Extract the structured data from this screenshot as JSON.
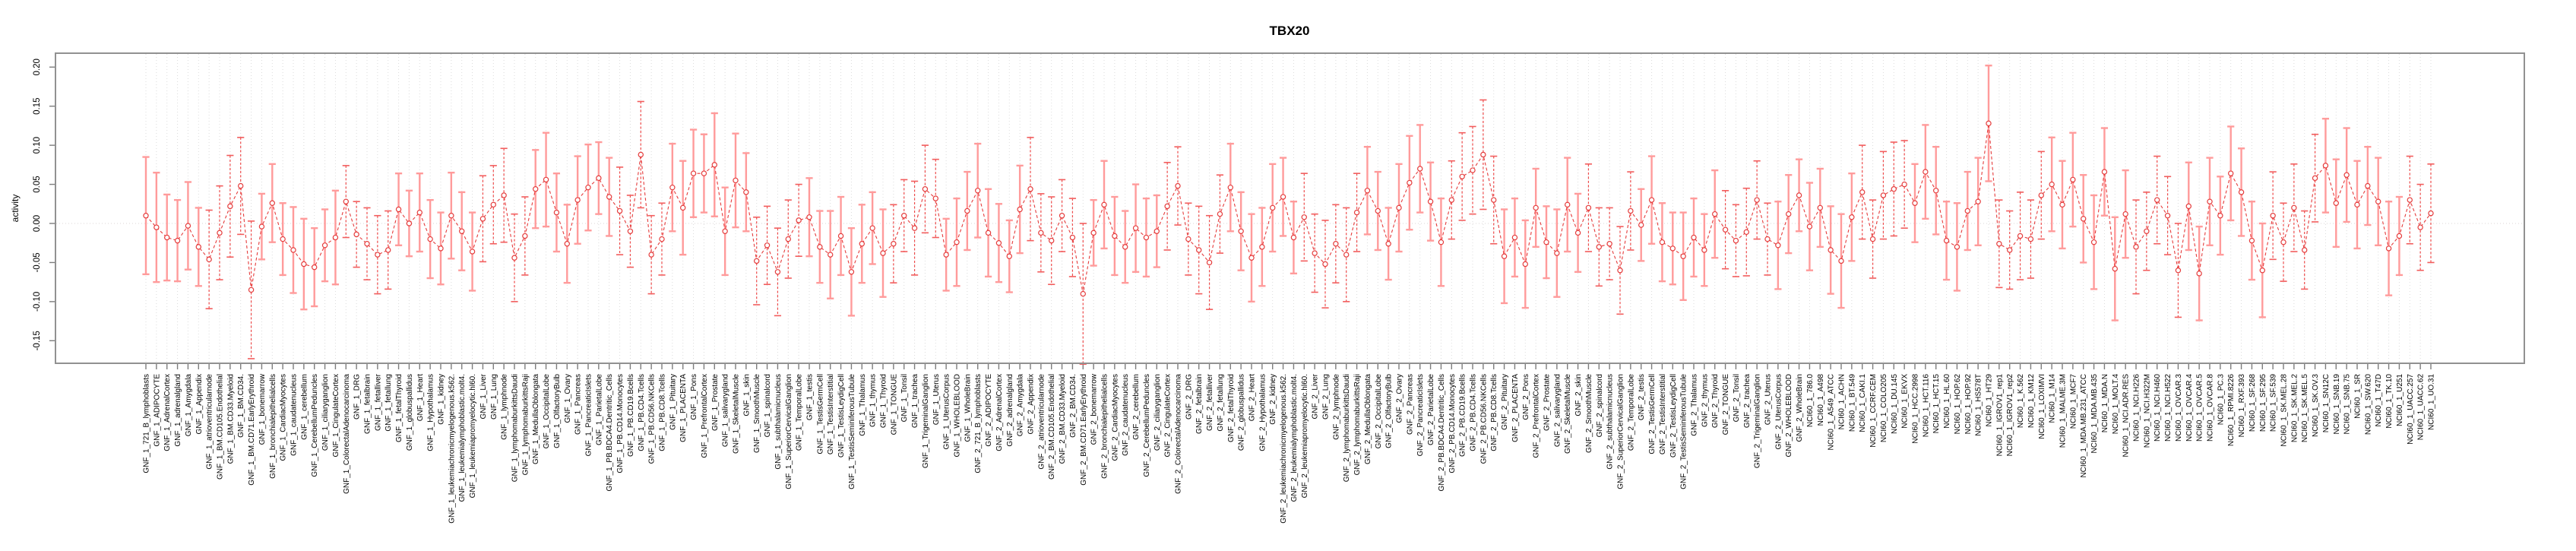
{
  "chart_data": {
    "type": "line",
    "title": "TBX20",
    "xlabel": "",
    "ylabel": "activity",
    "ylim": [
      -0.165,
      0.215
    ],
    "yticks": [
      0.2,
      0.15,
      0.1,
      0.05,
      0.0,
      -0.05,
      -0.1,
      -0.15
    ],
    "grid": "vertical-dotted-per-category",
    "zero_line": true,
    "legend": "none",
    "marker": "open-circle",
    "line_style": "dashed",
    "error_bars": "vertical-with-caps",
    "colors": {
      "series": "#e53c3c",
      "error_bar_solid": "#ff9b9b",
      "error_bar_dashed": "#ee4b4b",
      "gridline": "#dcdcdc",
      "zero_line": "#e2dddd",
      "plot_border": "#919191",
      "tick": "#7d7d7d",
      "text": "#000000"
    },
    "categories": [
      "GNF_1_721_B_lymphoblasts",
      "GNF_1_ADIPOCYTE",
      "GNF_1_AdrenalCortex",
      "GNF_1_adrenalgland",
      "GNF_1_Amygdala",
      "GNF_1_Appendix",
      "GNF_1_atrioventricularnode",
      "GNF_1_BM.CD105.Endothelial",
      "GNF_1_BM.CD33.Myeloid",
      "GNF_1_BM.CD34.",
      "GNF_1_BM.CD71.EarlyErythroid",
      "GNF_1_bonemarrow",
      "GNF_1_bronchialepithelialcells",
      "GNF_1_CardiacMyocytes",
      "GNF_1_caudatenucleus",
      "GNF_1_cerebellum",
      "GNF_1_CerebellumPeduncles",
      "GNF_1_ciliaryganglion",
      "GNF_1_CingulateCortex",
      "GNF_1_ColorectalAdenocarcinoma",
      "GNF_1_DRG",
      "GNF_1_fetalbrain",
      "GNF_1_fetalliver",
      "GNF_1_fetallung",
      "GNF_1_fetalThyroid",
      "GNF_1_globuspallidus",
      "GNF_1_Heart",
      "GNF_1_Hypothalamus",
      "GNF_1_kidney",
      "GNF_1_leukemiachronicmyelogenous.k562.",
      "GNF_1_leukemialymphoblastic.molt4.",
      "GNF_1_leukemiapromyelocytic.hl60.",
      "GNF_1_Liver",
      "GNF_1_Lung",
      "GNF_1_lymphnode",
      "GNF_1_lymphomaburkittsDaudi",
      "GNF_1_lymphomaburkittsRaji",
      "GNF_1_MedullaOblongata",
      "GNF_1_OccipitalLobe",
      "GNF_1_OlfactoryBulb",
      "GNF_1_Ovary",
      "GNF_1_Pancreas",
      "GNF_1_PancreaticIslets",
      "GNF_1_ParietalLobe",
      "GNF_1_PB.BDCA4.Dentritic_Cells",
      "GNF_1_PB.CD14.Monocytes",
      "GNF_1_PB.CD19.Bcells",
      "GNF_1_PB.CD4.Tcells",
      "GNF_1_PB.CD56.NKCells",
      "GNF_1_PB.CD8.Tcells",
      "GNF_1_Pituitary",
      "GNF_1_PLACENTA",
      "GNF_1_Pons",
      "GNF_1_PrefrontalCortex",
      "GNF_1_Prostate",
      "GNF_1_salivarygland",
      "GNF_1_SkeletalMuscle",
      "GNF_1_skin",
      "GNF_1_SmoothMuscle",
      "GNF_1_spinalcord",
      "GNF_1_subthalamicnucleus",
      "GNF_1_SuperiorCervicalGanglion",
      "GNF_1_TemporalLobe",
      "GNF_1_testis",
      "GNF_1_TestisGermCell",
      "GNF_1_TestisInterstitial",
      "GNF_1_TestisLeydigCell",
      "GNF_1_TestisSeminiferousTubule",
      "GNF_1_Thalamus",
      "GNF_1_thymus",
      "GNF_1_Thyroid",
      "GNF_1_TONGUE",
      "GNF_1_Tonsil",
      "GNF_1_trachea",
      "GNF_1_TrigeminalGanglion",
      "GNF_1_Uterus",
      "GNF_1_UterusCorpus",
      "GNF_1_WHOLEBLOOD",
      "GNF_1_WholeBrain",
      "GNF_2_721_B_lymphoblasts",
      "GNF_2_ADIPOCYTE",
      "GNF_2_AdrenalCortex",
      "GNF_2_adrenalgland",
      "GNF_2_Amygdala",
      "GNF_2_Appendix",
      "GNF_2_atrioventricularnode",
      "GNF_2_BM.CD105.Endothelial",
      "GNF_2_BM.CD33.Myeloid",
      "GNF_2_BM.CD34.",
      "GNF_2_BM.CD71.EarlyErythroid",
      "GNF_2_bonemarrow",
      "GNF_2_bronchialepithelialcells",
      "GNF_2_CardiacMyocytes",
      "GNF_2_caudatenucleus",
      "GNF_2_cerebellum",
      "GNF_2_CerebellumPeduncles",
      "GNF_2_ciliaryganglion",
      "GNF_2_CingulateCortex",
      "GNF_2_ColorectalAdenocarcinoma",
      "GNF_2_DRG",
      "GNF_2_fetalbrain",
      "GNF_2_fetalliver",
      "GNF_2_fetallung",
      "GNF_2_fetalThyroid",
      "GNF_2_globuspallidus",
      "GNF_2_Heart",
      "GNF_2_Hypothalamus",
      "GNF_2_kidney",
      "GNF_2_leukemiachronicmyelogenous.k562.",
      "GNF_2_leukemialymphoblastic.molt4.",
      "GNF_2_leukemiapromyelocytic.hl60.",
      "GNF_2_Liver",
      "GNF_2_Lung",
      "GNF_2_lymphnode",
      "GNF_2_lymphomaburkittsDaudi",
      "GNF_2_lymphomaburkittsRaji",
      "GNF_2_MedullaOblongata",
      "GNF_2_OccipitalLobe",
      "GNF_2_OlfactoryBulb",
      "GNF_2_Ovary",
      "GNF_2_Pancreas",
      "GNF_2_PancreaticIslets",
      "GNF_2_ParietalLobe",
      "GNF_2_PB.BDCA4.Dentritic_Cells",
      "GNF_2_PB.CD14.Monocytes",
      "GNF_2_PB.CD19.Bcells",
      "GNF_2_PB.CD4.Tcells",
      "GNF_2_PB.CD56.NKCells",
      "GNF_2_PB.CD8.Tcells",
      "GNF_2_Pituitary",
      "GNF_2_PLACENTA",
      "GNF_2_Pons",
      "GNF_2_PrefrontalCortex",
      "GNF_2_Prostate",
      "GNF_2_salivarygland",
      "GNF_2_SkeletalMuscle",
      "GNF_2_skin",
      "GNF_2_SmoothMuscle",
      "GNF_2_spinalcord",
      "GNF_2_subthalamicnucleus",
      "GNF_2_SuperiorCervicalGanglion",
      "GNF_2_TemporalLobe",
      "GNF_2_testis",
      "GNF_2_TestisGermCell",
      "GNF_2_TestisInterstitial",
      "GNF_2_TestisLeydigCell",
      "GNF_2_TestisSeminiferousTubule",
      "GNF_2_Thalamus",
      "GNF_2_thymus",
      "GNF_2_Thyroid",
      "GNF_2_TONGUE",
      "GNF_2_Tonsil",
      "GNF_2_trachea",
      "GNF_2_TrigeminalGanglion",
      "GNF_2_Uterus",
      "GNF_2_UterusCorpus",
      "GNF_2_WHOLEBLOOD",
      "GNF_2_WholeBrain",
      "NCI60_1_786.0",
      "NCI60_1_A498",
      "NCI60_1_A549_ATCC",
      "NCI60_1_ACHN",
      "NCI60_1_BT.549",
      "NCI60_1_CAKI.1",
      "NCI60_1_CCRF.CEM",
      "NCI60_1_COLO205",
      "NCI60_1_DU.145",
      "NCI60_1_EKVX",
      "NCI60_1_HCC.2998",
      "NCI60_1_HCT.116",
      "NCI60_1_HCT.15",
      "NCI60_1_HL.60",
      "NCI60_1_HOP.62",
      "NCI60_1_HOP.92",
      "NCI60_1_HS578T",
      "NCI60_1_HT29",
      "NCI60_1_IGROV1_rep1",
      "NCI60_1_IGROV1_rep2",
      "NCI60_1_K.562",
      "NCI60_1_KM12",
      "NCI60_1_LOXIMVI",
      "NCI60_1_M14",
      "NCI60_1_MALME.3M",
      "NCI60_1_MCF7",
      "NCI60_1_MDA.MB.231_ATCC",
      "NCI60_1_MDA.MB.435",
      "NCI60_1_MDA.N",
      "NCI60_1_MOLT.4",
      "NCI60_1_NCI.ADR.RES",
      "NCI60_1_NCI.H226",
      "NCI60_1_NCI.H322M",
      "NCI60_1_NCI.H460",
      "NCI60_1_NCI.H522",
      "NCI60_1_OVCAR.3",
      "NCI60_1_OVCAR.4",
      "NCI60_1_OVCAR.5",
      "NCI60_1_OVCAR.8",
      "NCI60_1_PC.3",
      "NCI60_1_RPMI.8226",
      "NCI60_1_RXF.393",
      "NCI60_1_SF.268",
      "NCI60_1_SF.295",
      "NCI60_1_SF.539",
      "NCI60_1_SK.MEL.28",
      "NCI60_1_SK.MEL.2",
      "NCI60_1_SK.MEL.5",
      "NCI60_1_SK.OV.3",
      "NCI60_1_SN12C",
      "NCI60_1_SNB.19",
      "NCI60_1_SNB.75",
      "NCI60_1_SR",
      "NCI60_1_SW.620",
      "NCI60_1_T47D",
      "NCI60_1_TK.10",
      "NCI60_1_U251",
      "NCI60_1_UACC.257",
      "NCI60_1_UACC.62",
      "NCI60_1_UO.31"
    ],
    "values": [
      0.01,
      -0.005,
      -0.018,
      -0.022,
      -0.003,
      -0.03,
      -0.046,
      -0.012,
      0.022,
      0.048,
      -0.085,
      -0.004,
      0.026,
      -0.02,
      -0.034,
      -0.052,
      -0.056,
      -0.028,
      -0.018,
      0.028,
      -0.014,
      -0.026,
      -0.04,
      -0.034,
      0.018,
      0.0,
      0.014,
      -0.02,
      -0.032,
      0.01,
      -0.01,
      -0.036,
      0.006,
      0.024,
      0.036,
      -0.044,
      -0.016,
      0.044,
      0.056,
      0.014,
      -0.026,
      0.03,
      0.046,
      0.058,
      0.034,
      0.016,
      -0.01,
      0.088,
      -0.04,
      -0.02,
      0.046,
      0.02,
      0.064,
      0.064,
      0.075,
      -0.01,
      0.055,
      0.04,
      -0.048,
      -0.028,
      -0.062,
      -0.02,
      0.004,
      0.008,
      -0.03,
      -0.04,
      -0.016,
      -0.062,
      -0.026,
      -0.006,
      -0.038,
      -0.026,
      0.01,
      -0.006,
      0.044,
      0.032,
      -0.04,
      -0.024,
      0.016,
      0.042,
      -0.012,
      -0.025,
      -0.042,
      0.018,
      0.044,
      -0.012,
      -0.022,
      0.01,
      -0.018,
      -0.09,
      -0.012,
      0.024,
      -0.016,
      -0.03,
      -0.006,
      -0.018,
      -0.01,
      0.022,
      0.048,
      -0.02,
      -0.034,
      -0.05,
      0.012,
      0.046,
      -0.01,
      -0.044,
      -0.03,
      0.02,
      0.034,
      -0.018,
      0.008,
      -0.038,
      -0.052,
      -0.026,
      -0.04,
      0.014,
      0.042,
      0.016,
      -0.026,
      0.02,
      0.052,
      0.07,
      0.028,
      -0.024,
      0.03,
      0.06,
      0.068,
      0.088,
      0.03,
      -0.042,
      -0.018,
      -0.052,
      0.02,
      -0.024,
      -0.038,
      0.024,
      -0.012,
      0.02,
      -0.03,
      -0.026,
      -0.06,
      0.016,
      -0.002,
      0.03,
      -0.024,
      -0.032,
      -0.042,
      -0.018,
      -0.034,
      0.012,
      -0.008,
      -0.022,
      -0.011,
      0.03,
      -0.02,
      -0.028,
      0.012,
      0.036,
      -0.004,
      0.02,
      -0.034,
      -0.048,
      0.008,
      0.04,
      -0.02,
      0.036,
      0.044,
      0.05,
      0.026,
      0.066,
      0.042,
      -0.022,
      -0.03,
      0.016,
      0.028,
      0.128,
      -0.026,
      -0.034,
      -0.016,
      -0.02,
      0.036,
      0.05,
      0.024,
      0.056,
      0.006,
      -0.024,
      0.066,
      -0.058,
      0.012,
      -0.03,
      -0.01,
      0.03,
      0.01,
      -0.06,
      0.022,
      -0.064,
      0.028,
      0.01,
      0.064,
      0.04,
      -0.022,
      -0.06,
      0.01,
      -0.024,
      0.02,
      -0.034,
      0.058,
      0.074,
      0.026,
      0.062,
      0.024,
      0.048,
      0.028,
      -0.032,
      -0.016,
      0.03,
      -0.005,
      0.013
    ],
    "errors": [
      0.075,
      0.07,
      0.055,
      0.052,
      0.056,
      0.05,
      0.063,
      0.06,
      0.065,
      0.062,
      0.088,
      0.042,
      0.05,
      0.046,
      0.055,
      0.058,
      0.05,
      0.046,
      0.06,
      0.046,
      0.042,
      0.046,
      0.05,
      0.05,
      0.046,
      0.042,
      0.05,
      0.05,
      0.046,
      0.055,
      0.05,
      0.05,
      0.055,
      0.05,
      0.06,
      0.056,
      0.05,
      0.05,
      0.06,
      0.05,
      0.05,
      0.056,
      0.055,
      0.046,
      0.05,
      0.056,
      0.046,
      0.068,
      0.05,
      0.046,
      0.056,
      0.06,
      0.056,
      0.05,
      0.066,
      0.056,
      0.06,
      0.05,
      0.056,
      0.05,
      0.056,
      0.05,
      0.046,
      0.05,
      0.046,
      0.056,
      0.05,
      0.056,
      0.05,
      0.046,
      0.056,
      0.05,
      0.046,
      0.06,
      0.056,
      0.05,
      0.046,
      0.056,
      0.05,
      0.06,
      0.056,
      0.05,
      0.046,
      0.056,
      0.066,
      0.05,
      0.056,
      0.046,
      0.05,
      0.09,
      0.042,
      0.056,
      0.05,
      0.046,
      0.056,
      0.05,
      0.046,
      0.056,
      0.05,
      0.046,
      0.056,
      0.06,
      0.05,
      0.056,
      0.05,
      0.056,
      0.05,
      0.056,
      0.05,
      0.046,
      0.056,
      0.05,
      0.056,
      0.05,
      0.06,
      0.05,
      0.056,
      0.05,
      0.046,
      0.056,
      0.06,
      0.056,
      0.05,
      0.056,
      0.05,
      0.056,
      0.056,
      0.07,
      0.056,
      0.06,
      0.05,
      0.056,
      0.05,
      0.046,
      0.056,
      0.06,
      0.05,
      0.056,
      0.05,
      0.046,
      0.056,
      0.05,
      0.046,
      0.056,
      0.05,
      0.046,
      0.056,
      0.05,
      0.046,
      0.056,
      0.05,
      0.046,
      0.056,
      0.05,
      0.046,
      0.056,
      0.05,
      0.046,
      0.056,
      0.05,
      0.056,
      0.06,
      0.056,
      0.06,
      0.05,
      0.056,
      0.06,
      0.056,
      0.05,
      0.06,
      0.056,
      0.05,
      0.056,
      0.05,
      0.056,
      0.074,
      0.056,
      0.05,
      0.056,
      0.05,
      0.056,
      0.06,
      0.056,
      0.06,
      0.056,
      0.06,
      0.056,
      0.066,
      0.056,
      0.06,
      0.05,
      0.056,
      0.05,
      0.06,
      0.056,
      0.06,
      0.056,
      0.05,
      0.06,
      0.056,
      0.05,
      0.06,
      0.056,
      0.05,
      0.056,
      0.05,
      0.056,
      0.06,
      0.056,
      0.06,
      0.056,
      0.05,
      0.056,
      0.06,
      0.05,
      0.056,
      0.055,
      0.063
    ]
  }
}
